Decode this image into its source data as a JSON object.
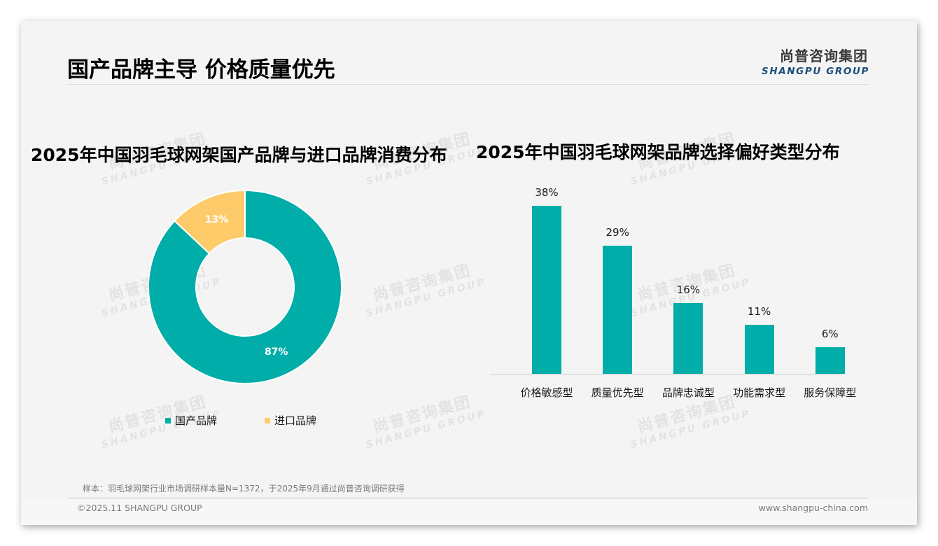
{
  "header": {
    "title": "国产品牌主导 价格质量优先",
    "logo_cn": "尚普咨询集团",
    "logo_en": "SHANGPU GROUP"
  },
  "watermark": {
    "cn": "尚普咨询集团",
    "en": "SHANGPU GROUP"
  },
  "colors": {
    "teal": "#00ADA8",
    "yellow": "#FDCB6A",
    "background": "#F4F4F4",
    "logo_blue": "#1F4E79"
  },
  "chart_data": [
    {
      "type": "pie",
      "variant": "donut",
      "title": "2025年中国羽毛球网架国产品牌与进口品牌消费分布",
      "categories": [
        "国产品牌",
        "进口品牌"
      ],
      "values": [
        87,
        13
      ],
      "labels": [
        "87%",
        "13%"
      ],
      "colors": [
        "#00ADA8",
        "#FDCB6A"
      ],
      "legend_position": "bottom"
    },
    {
      "type": "bar",
      "title": "2025年中国羽毛球网架品牌选择偏好类型分布",
      "categories": [
        "价格敏感型",
        "质量优先型",
        "品牌忠诚型",
        "功能需求型",
        "服务保障型"
      ],
      "values": [
        38,
        29,
        16,
        11,
        6
      ],
      "labels": [
        "38%",
        "29%",
        "16%",
        "11%",
        "6%"
      ],
      "color": "#00ADA8",
      "xlabel": "",
      "ylabel": "",
      "grid": false,
      "y_axis_visible": false
    }
  ],
  "legend": {
    "items": [
      {
        "label": "国产品牌",
        "color": "#00ADA8"
      },
      {
        "label": "进口品牌",
        "color": "#FDCB6A"
      }
    ]
  },
  "footer": {
    "source_note": "样本：羽毛球网架行业市场调研样本量N=1372，于2025年9月通过尚普咨询调研获得",
    "copyright": "©2025.11 SHANGPU GROUP",
    "website": "www.shangpu-china.com"
  }
}
